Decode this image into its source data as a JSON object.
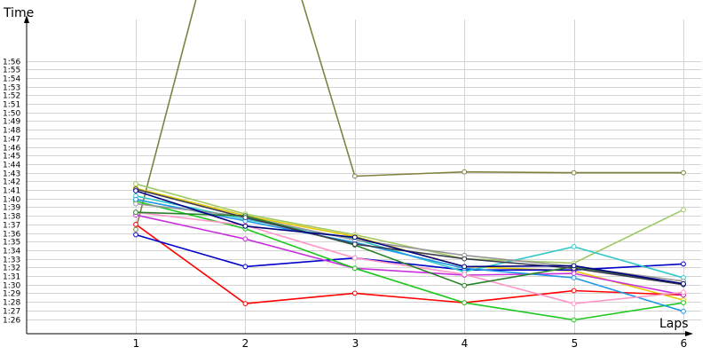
{
  "chart_data": {
    "type": "line",
    "ylabel": "Time",
    "xlabel": "Laps",
    "x": [
      1,
      2,
      3,
      4,
      5,
      6
    ],
    "x_tick_labels": [
      "1",
      "2",
      "3",
      "4",
      "5",
      "6"
    ],
    "y_unit": "seconds (m:ss)",
    "y_ticks": [
      86,
      87,
      88,
      89,
      90,
      91,
      92,
      93,
      94,
      95,
      96,
      97,
      98,
      99,
      100,
      101,
      102,
      103,
      104,
      105,
      106,
      107,
      108,
      109,
      110,
      111,
      112,
      113,
      114,
      115,
      116
    ],
    "y_tick_labels": [
      "1:26",
      "1:27",
      "1:28",
      "1:29",
      "1:30",
      "1:31",
      "1:32",
      "1:33",
      "1:34",
      "1:35",
      "1:36",
      "1:37",
      "1:38",
      "1:39",
      "1:40",
      "1:41",
      "1:42",
      "1:43",
      "1:44",
      "1:45",
      "1:46",
      "1:47",
      "1:48",
      "1:49",
      "1:50",
      "1:51",
      "1:52",
      "1:53",
      "1:54",
      "1:55",
      "1:56"
    ],
    "ylim": [
      84.3,
      120.8
    ],
    "grid": true,
    "legend": "none",
    "series": [
      {
        "color": "#808040",
        "values": [
          96.4,
          145.0,
          102.6,
          103.1,
          103.0,
          103.0
        ]
      },
      {
        "color": "#a0c864",
        "values": [
          101.7,
          98.2,
          95.8,
          93.0,
          92.5,
          98.7
        ]
      },
      {
        "color": "#e6c800",
        "values": [
          101.2,
          98.0,
          95.6,
          92.1,
          91.6,
          88.2
        ]
      },
      {
        "color": "#ff0000",
        "values": [
          97.0,
          87.8,
          89.0,
          87.9,
          89.3,
          88.8
        ]
      },
      {
        "color": "#0000c8",
        "values": [
          95.8,
          92.1,
          93.1,
          91.7,
          91.7,
          92.4
        ]
      },
      {
        "color": "#c832dc",
        "values": [
          98.1,
          95.3,
          91.9,
          91.1,
          91.3,
          88.8
        ]
      },
      {
        "color": "#1ec81e",
        "values": [
          99.7,
          96.5,
          91.9,
          87.9,
          85.9,
          87.9
        ]
      },
      {
        "color": "#32c8c8",
        "values": [
          100.3,
          97.6,
          95.3,
          91.5,
          94.4,
          90.8
        ]
      },
      {
        "color": "#1e96e6",
        "values": [
          99.9,
          97.4,
          94.9,
          91.9,
          90.8,
          86.9
        ]
      },
      {
        "color": "#ff96c8",
        "values": [
          98.4,
          96.9,
          93.1,
          91.2,
          87.8,
          89.1
        ]
      },
      {
        "color": "#969696",
        "values": [
          99.4,
          97.9,
          95.2,
          93.4,
          92.1,
          90.4
        ]
      },
      {
        "color": "#288228",
        "values": [
          98.4,
          98.0,
          94.6,
          89.9,
          92.1,
          90.1
        ]
      },
      {
        "color": "#3c3c50",
        "values": [
          101.1,
          97.8,
          94.7,
          93.0,
          91.9,
          90.0
        ]
      },
      {
        "color": "#000080",
        "values": [
          100.9,
          96.8,
          95.5,
          92.1,
          92.2,
          90.1
        ]
      }
    ]
  }
}
